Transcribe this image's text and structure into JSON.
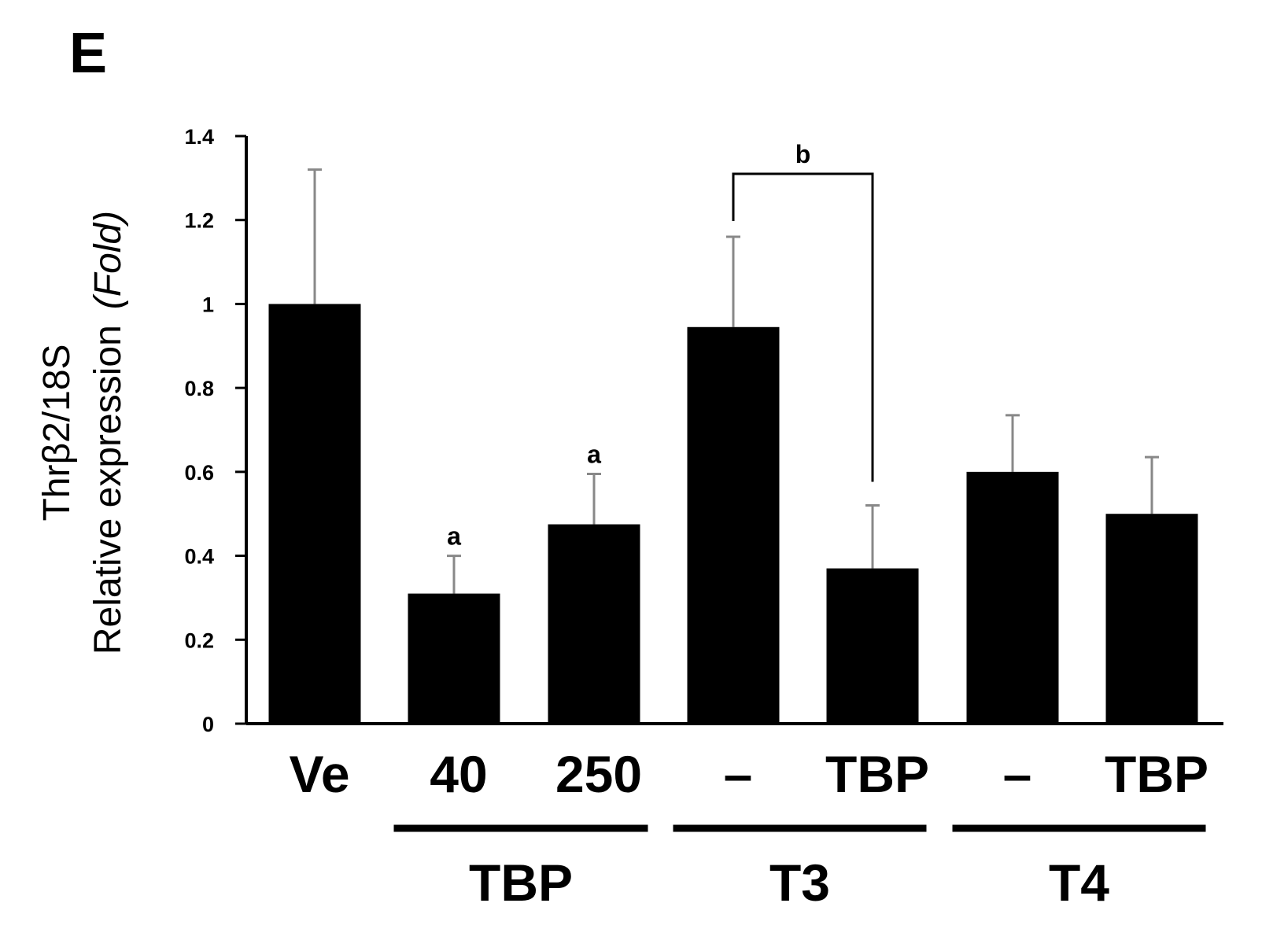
{
  "panel_label": "E",
  "chart_data": {
    "type": "bar",
    "ylabel_line1": "Thrβ2/18S",
    "ylabel_line2_main": "Relative expression",
    "ylabel_line2_unit": "(Fold)",
    "ylim": [
      0,
      1.4
    ],
    "yticks": [
      {
        "value": 0,
        "label": "0"
      },
      {
        "value": 0.2,
        "label": "0.2"
      },
      {
        "value": 0.4,
        "label": "0.4"
      },
      {
        "value": 0.6,
        "label": "0.6"
      },
      {
        "value": 0.8,
        "label": "0.8"
      },
      {
        "value": 1.0,
        "label": "1"
      },
      {
        "value": 1.2,
        "label": "1.2"
      },
      {
        "value": 1.4,
        "label": "1.4"
      }
    ],
    "categories": [
      "Ve",
      "40",
      "250",
      "–",
      "TBP",
      "–",
      "TBP"
    ],
    "values": [
      1.0,
      0.31,
      0.475,
      0.945,
      0.37,
      0.6,
      0.5
    ],
    "errors": [
      0.32,
      0.09,
      0.12,
      0.215,
      0.15,
      0.135,
      0.135
    ],
    "bar_color": "#000000",
    "error_color": "#888888",
    "annotations": [
      {
        "bar": 1,
        "text": "a"
      },
      {
        "bar": 2,
        "text": "a"
      }
    ],
    "bracket": {
      "from": 3,
      "to": 4,
      "level": 1.31,
      "text": "b"
    },
    "groups": [
      {
        "label": "TBP",
        "from": 1,
        "to": 2
      },
      {
        "label": "T3",
        "from": 3,
        "to": 4
      },
      {
        "label": "T4",
        "from": 5,
        "to": 6
      }
    ]
  }
}
